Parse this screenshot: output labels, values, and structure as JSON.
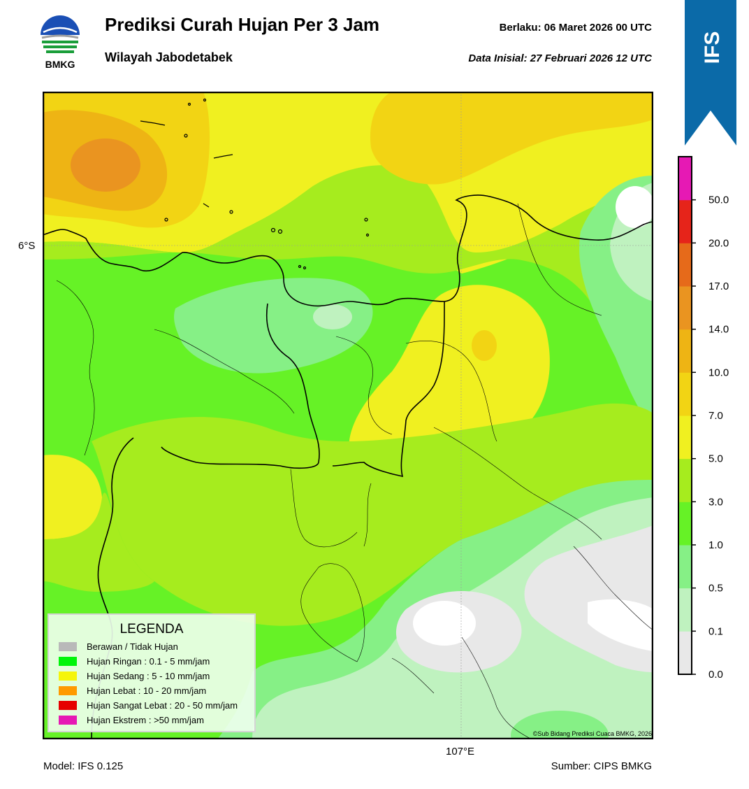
{
  "header": {
    "logo_text": "BMKG",
    "title": "Prediksi Curah Hujan Per 3 Jam",
    "subtitle": "Wilayah Jabodetabek",
    "valid_label": "Berlaku:  06 Maret 2026 00 UTC",
    "init_label": "Data Inisial:  27 Februari 2026 12 UTC"
  },
  "badge": {
    "label": "IFS",
    "color": "#0b6aa8"
  },
  "map": {
    "lat_label": "6°S",
    "lon_label": "107°E",
    "copyright": "©Sub Bidang Prediksi Cuaca BMKG, 2026"
  },
  "legend": {
    "title": "LEGENDA",
    "items": [
      {
        "label": "Berawan / Tidak Hujan",
        "color": "#b9b9b9"
      },
      {
        "label": "Hujan Ringan : 0.1 - 5 mm/jam",
        "color": "#00f50a"
      },
      {
        "label": "Hujan Sedang : 5 - 10 mm/jam",
        "color": "#f5f50a"
      },
      {
        "label": "Hujan Lebat : 10 - 20 mm/jam",
        "color": "#ff9a00"
      },
      {
        "label": "Hujan Sangat Lebat : 20 - 50 mm/jam",
        "color": "#e60000"
      },
      {
        "label": "Hujan Ekstrem : >50 mm/jam",
        "color": "#e619b4"
      }
    ]
  },
  "colorbar": {
    "ticks": [
      "0.0",
      "0.1",
      "0.5",
      "1.0",
      "3.0",
      "5.0",
      "7.0",
      "10.0",
      "14.0",
      "17.0",
      "20.0",
      "50.0"
    ],
    "colors": [
      "#e8e8e8",
      "#bff2bf",
      "#86f086",
      "#66f226",
      "#a6ec1e",
      "#f0f020",
      "#f2d414",
      "#eeb414",
      "#ea9420",
      "#e66a1a",
      "#e6241a",
      "#e619b4"
    ]
  },
  "footer": {
    "model": "Model: IFS 0.125",
    "source": "Sumber: CIPS BMKG"
  }
}
